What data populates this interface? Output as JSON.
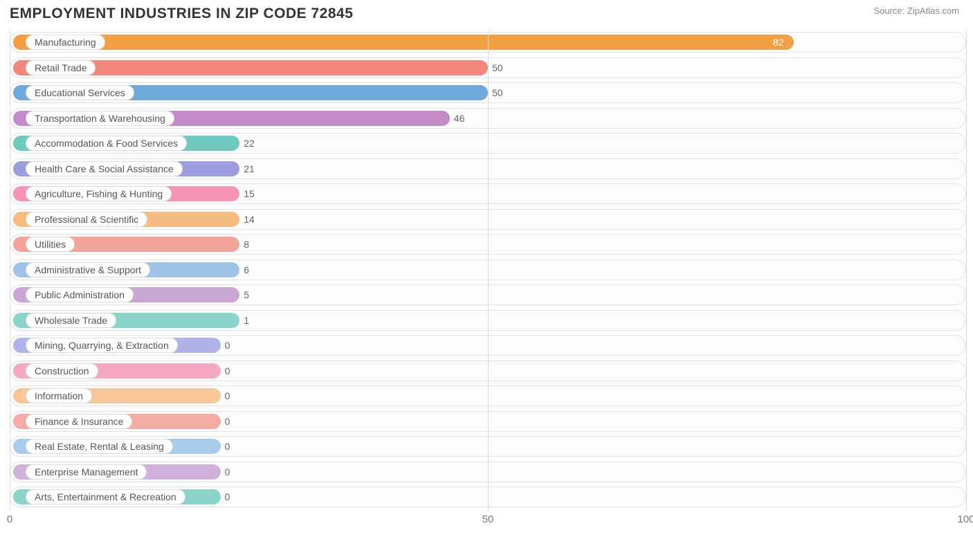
{
  "title": "EMPLOYMENT INDUSTRIES IN ZIP CODE 72845",
  "source": "Source: ZipAtlas.com",
  "chart": {
    "type": "bar-horizontal",
    "xlim": [
      0,
      100
    ],
    "xtick_step": 50,
    "xticks": [
      0,
      50,
      100
    ],
    "track_border_color": "#e2e2e2",
    "track_bg_color": "#fcfcfc",
    "grid_color": "#d9d9d9",
    "bg_color": "#ffffff",
    "label_pill_bg": "#ffffff",
    "label_pill_border": "#dddddd",
    "label_fontsize": 14,
    "value_fontsize": 14,
    "title_fontsize": 21,
    "zero_bar_width_pct": 22,
    "min_bar_width_pct": 24,
    "bars": [
      {
        "label": "Manufacturing",
        "value": 82,
        "color": "#f2a044"
      },
      {
        "label": "Retail Trade",
        "value": 50,
        "color": "#f2877c"
      },
      {
        "label": "Educational Services",
        "value": 50,
        "color": "#6fa9dc"
      },
      {
        "label": "Transportation & Warehousing",
        "value": 46,
        "color": "#c28ac8"
      },
      {
        "label": "Accommodation & Food Services",
        "value": 22,
        "color": "#6fc9bd"
      },
      {
        "label": "Health Care & Social Assistance",
        "value": 21,
        "color": "#9b9de0"
      },
      {
        "label": "Agriculture, Fishing & Hunting",
        "value": 15,
        "color": "#f594b6"
      },
      {
        "label": "Professional & Scientific",
        "value": 14,
        "color": "#f6bd82"
      },
      {
        "label": "Utilities",
        "value": 8,
        "color": "#f2a49b"
      },
      {
        "label": "Administrative & Support",
        "value": 6,
        "color": "#9ec4e8"
      },
      {
        "label": "Public Administration",
        "value": 5,
        "color": "#caa6d4"
      },
      {
        "label": "Wholesale Trade",
        "value": 1,
        "color": "#8bd4ca"
      },
      {
        "label": "Mining, Quarrying, & Extraction",
        "value": 0,
        "color": "#b0b3e8"
      },
      {
        "label": "Construction",
        "value": 0,
        "color": "#f5a8c1"
      },
      {
        "label": "Information",
        "value": 0,
        "color": "#f6c797"
      },
      {
        "label": "Finance & Insurance",
        "value": 0,
        "color": "#f2aca4"
      },
      {
        "label": "Real Estate, Rental & Leasing",
        "value": 0,
        "color": "#a9cceb"
      },
      {
        "label": "Enterprise Management",
        "value": 0,
        "color": "#cfb1d9"
      },
      {
        "label": "Arts, Entertainment & Recreation",
        "value": 0,
        "color": "#8bd4ca"
      }
    ]
  }
}
